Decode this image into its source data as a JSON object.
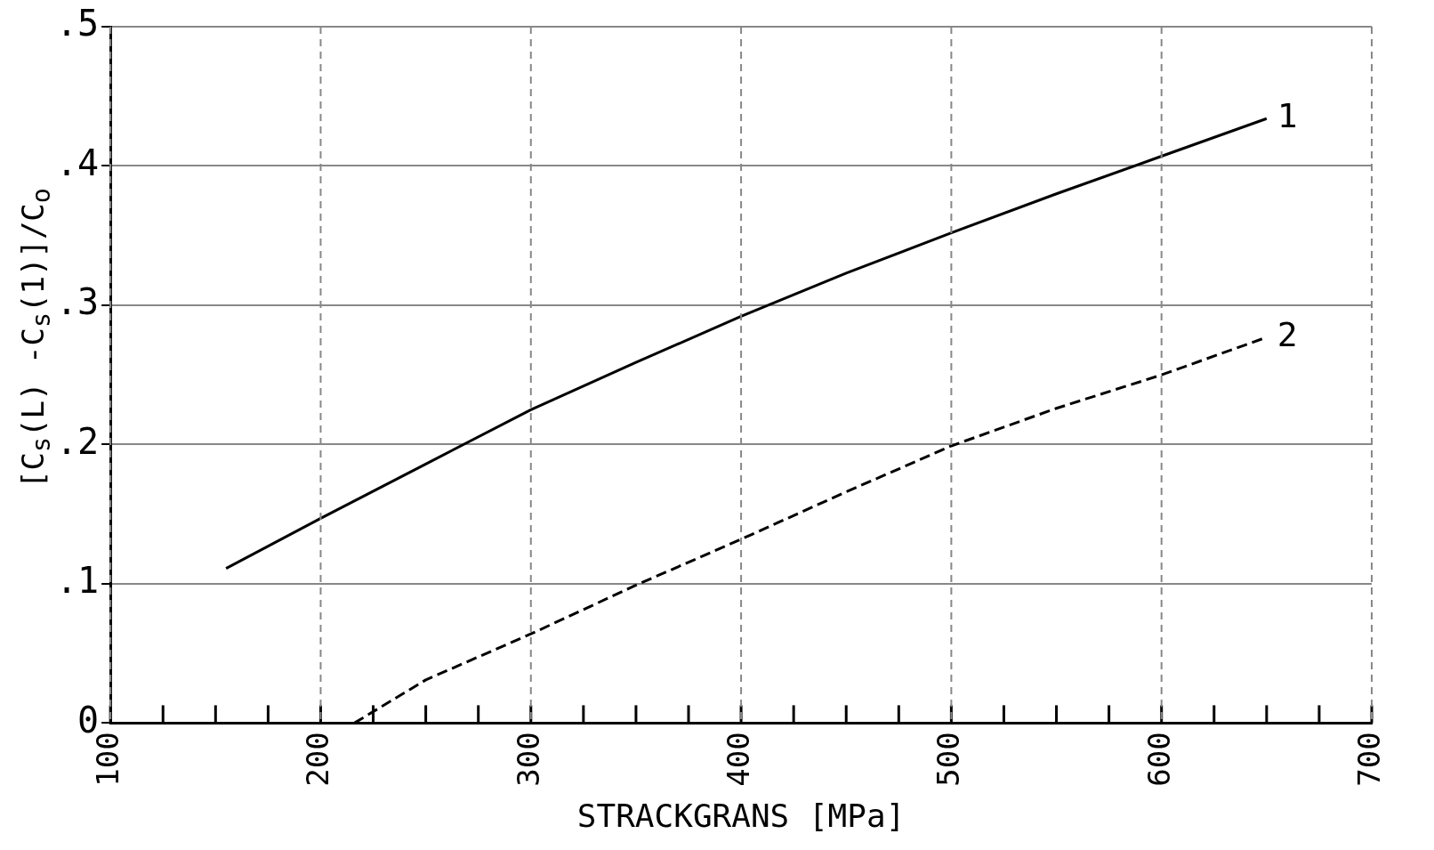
{
  "chart_data": {
    "type": "line",
    "xlabel": "STRACKGRANS [MPa]",
    "ylabel": "[C$_{s}$(L) -C$_{s}$(1)]/C$_{o}$",
    "series": [
      {
        "color": "#000000",
        "line_style": "solid",
        "x": [
          155,
          200,
          250,
          300,
          350,
          400,
          450,
          500,
          550,
          600,
          650
        ],
        "values": [
          0.111,
          0.147,
          0.186,
          0.225,
          0.259,
          0.292,
          0.323,
          0.352,
          0.38,
          0.407,
          0.434
        ]
      },
      {
        "color": "#000000",
        "line_style": "dashed",
        "x": [
          216,
          250,
          300,
          350,
          400,
          450,
          500,
          550,
          600,
          650
        ],
        "values": [
          0,
          0.031,
          0.064,
          0.099,
          0.132,
          0.166,
          0.199,
          0.226,
          0.25,
          0.277
        ]
      }
    ],
    "annotations": [
      {
        "text": "1",
        "x": 650,
        "y": 0.434
      },
      {
        "text": "2",
        "x": 650,
        "y": 0.277
      }
    ],
    "xlim": [
      100,
      700
    ],
    "xticks": [
      100,
      200,
      300,
      400,
      500,
      600,
      700
    ],
    "ylim": [
      0,
      0.5
    ],
    "yticks": [
      {
        "value": 0,
        "label": "0"
      },
      {
        "value": 0.1,
        "label": ".1"
      },
      {
        "value": 0.2,
        "label": ".2"
      },
      {
        "value": 0.3,
        "label": ".3"
      },
      {
        "value": 0.4,
        "label": ".4"
      },
      {
        "value": 0.5,
        "label": ".5"
      }
    ],
    "grid": true,
    "legend": false,
    "marker": "none"
  }
}
